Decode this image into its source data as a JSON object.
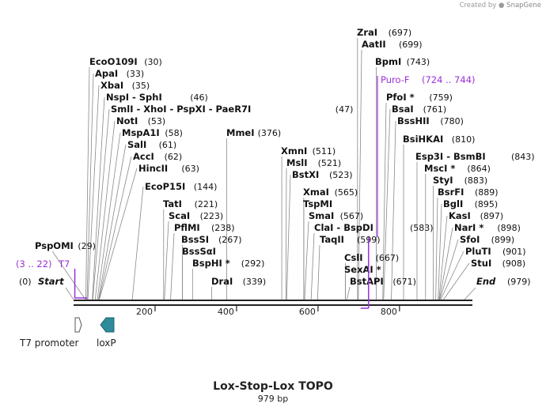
{
  "credit": {
    "prefix": "Created by",
    "brand": "SnapGene"
  },
  "map": {
    "title": "Lox-Stop-Lox TOPO",
    "length_label": "979 bp",
    "length_bp": 979,
    "ticks": [
      "200",
      "400",
      "600",
      "800"
    ],
    "start_label": "Start",
    "start_pos": "(0)",
    "end_label": "End",
    "end_pos": "(979)"
  },
  "sites": [
    {
      "name": "EcoO109I",
      "pos": "(30)",
      "bp": 30
    },
    {
      "name": "ApaI",
      "pos": "(33)",
      "bp": 33
    },
    {
      "name": "XbaI",
      "pos": "(35)",
      "bp": 35
    },
    {
      "name": "NspI  -  SphI",
      "pos": "(46)",
      "bp": 46
    },
    {
      "name": "SmlI   -  XhoI   -  PspXI   -  PaeR7I",
      "pos": "(47)",
      "bp": 47
    },
    {
      "name": "NotI",
      "pos": "(53)",
      "bp": 53
    },
    {
      "name": "MspA1I",
      "pos": "(58)",
      "bp": 58
    },
    {
      "name": "SalI",
      "pos": "(61)",
      "bp": 61
    },
    {
      "name": "AccI",
      "pos": "(62)",
      "bp": 62
    },
    {
      "name": "HincII",
      "pos": "(63)",
      "bp": 63
    },
    {
      "name": "EcoP15I",
      "pos": "(144)",
      "bp": 144
    },
    {
      "name": "TatI",
      "pos": "(221)",
      "bp": 221
    },
    {
      "name": "ScaI",
      "pos": "(223)",
      "bp": 223
    },
    {
      "name": "PflMI",
      "pos": "(238)",
      "bp": 238
    },
    {
      "name": "BssSI",
      "pos": "(267)",
      "bp": 267
    },
    {
      "name": "BssSαI",
      "pos": "",
      "bp": 267
    },
    {
      "name": "BspHI *",
      "pos": "(292)",
      "bp": 292
    },
    {
      "name": "DraI",
      "pos": "(339)",
      "bp": 339
    },
    {
      "name": "MmeI",
      "pos": "(376)",
      "bp": 376
    },
    {
      "name": "XmnI",
      "pos": "(511)",
      "bp": 511
    },
    {
      "name": "MslI",
      "pos": "(521)",
      "bp": 521
    },
    {
      "name": "BstXI",
      "pos": "(523)",
      "bp": 523
    },
    {
      "name": "XmaI",
      "pos": "(565)",
      "bp": 565
    },
    {
      "name": "TspMI",
      "pos": "",
      "bp": 565
    },
    {
      "name": "SmaI",
      "pos": "(567)",
      "bp": 567
    },
    {
      "name": "ClaI   -  BspDI",
      "pos": "(583)",
      "bp": 583
    },
    {
      "name": "TaqII",
      "pos": "(599)",
      "bp": 599
    },
    {
      "name": "CslI",
      "pos": "(667)",
      "bp": 667
    },
    {
      "name": "SexAI *",
      "pos": "",
      "bp": 667
    },
    {
      "name": "BstAPI",
      "pos": "(671)",
      "bp": 671
    },
    {
      "name": "ZraI",
      "pos": "(697)",
      "bp": 697
    },
    {
      "name": "AatII",
      "pos": "(699)",
      "bp": 699
    },
    {
      "name": "BpmI",
      "pos": "(743)",
      "bp": 743
    },
    {
      "name": "PfoI *",
      "pos": "(759)",
      "bp": 759
    },
    {
      "name": "BsaI",
      "pos": "(761)",
      "bp": 761
    },
    {
      "name": "BssHII",
      "pos": "(780)",
      "bp": 780
    },
    {
      "name": "BsiHKAI",
      "pos": "(810)",
      "bp": 810
    },
    {
      "name": "Esp3I  -  BsmBI",
      "pos": "(843)",
      "bp": 843
    },
    {
      "name": "MscI *",
      "pos": "(864)",
      "bp": 864
    },
    {
      "name": "StyI",
      "pos": "(883)",
      "bp": 883
    },
    {
      "name": "BsrFI",
      "pos": "(889)",
      "bp": 889
    },
    {
      "name": "BglI",
      "pos": "(895)",
      "bp": 895
    },
    {
      "name": "KasI",
      "pos": "(897)",
      "bp": 897
    },
    {
      "name": "NarI *",
      "pos": "(898)",
      "bp": 898
    },
    {
      "name": "SfoI",
      "pos": "(899)",
      "bp": 899
    },
    {
      "name": "PluTI",
      "pos": "(901)",
      "bp": 901
    },
    {
      "name": "StuI",
      "pos": "(908)",
      "bp": 908
    },
    {
      "name": "PspOMI",
      "pos": "(29)",
      "bp": 29
    }
  ],
  "primers": [
    {
      "name": "T7",
      "pos": "(3 .. 22)",
      "start": 3,
      "end": 22
    },
    {
      "name": "Puro-F",
      "pos": "(724 .. 744)",
      "start": 724,
      "end": 744
    }
  ],
  "features": [
    {
      "name": "T7 promoter",
      "start": 3,
      "end": 22,
      "direction": "forward",
      "color": "#ffffff"
    },
    {
      "name": "loxP",
      "start": 50,
      "end": 83,
      "direction": "reverse",
      "color": "#2f8a9a"
    }
  ],
  "colors": {
    "primer": "#9b30d9",
    "backbone": "#222222",
    "loxp": "#2f8a9a"
  }
}
